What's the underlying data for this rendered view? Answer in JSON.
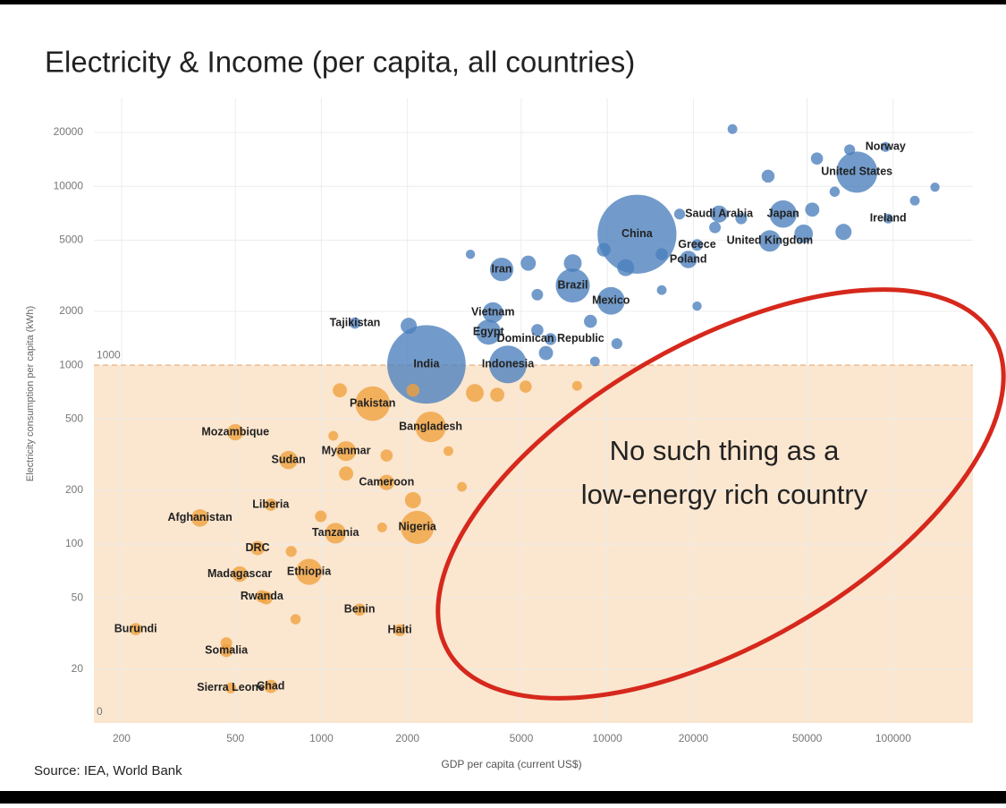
{
  "chart_data": {
    "type": "bubble",
    "title": "Electricity & Income (per capita, all countries)",
    "x_label": "GDP per capita (current US$)",
    "y_label": "Electricity consumption per capita (kWh)",
    "source": "Source: IEA, World Bank",
    "annotation": [
      "No such thing as a",
      "low-energy rich country"
    ],
    "threshold": {
      "value": 1000,
      "label": "1000"
    },
    "origin_label": "0",
    "log_x": true,
    "log_y": true,
    "grid": true,
    "xlim": [
      160,
      190000
    ],
    "ylim": [
      10,
      31000
    ],
    "xticks": [
      200,
      500,
      1000,
      2000,
      5000,
      10000,
      20000,
      50000,
      100000
    ],
    "yticks": [
      20,
      50,
      100,
      200,
      500,
      1000,
      2000,
      5000,
      10000,
      20000
    ],
    "series": [
      {
        "color": "#4a7fbc",
        "labels": [
          "Norway",
          "United States",
          "Saudi Arabia",
          "Japan",
          "Ireland",
          "China",
          "Greece",
          "Poland",
          "United Kingdom",
          "Iran",
          "Brazil",
          "Mexico",
          "Vietnam",
          "Egypt",
          "Dominican Republic",
          "Tajikistan",
          "India",
          "Indonesia",
          null,
          null,
          null,
          null,
          null,
          null,
          null,
          null,
          null,
          null,
          null,
          null,
          null,
          null,
          null,
          null,
          null,
          null,
          null,
          null,
          null,
          null,
          null,
          null,
          null,
          null,
          null,
          null
        ],
        "x": [
          94000,
          74600,
          24600,
          41200,
          96000,
          12700,
          20600,
          19200,
          37000,
          4270,
          7570,
          10300,
          3980,
          3840,
          6330,
          1310,
          2330,
          4490,
          27400,
          70400,
          54100,
          36500,
          62400,
          140000,
          119000,
          52100,
          29400,
          17900,
          67000,
          48600,
          23800,
          15500,
          11600,
          9720,
          5290,
          3320,
          5690,
          15500,
          20600,
          8730,
          5690,
          2020,
          10800,
          9050,
          6100,
          7570
        ],
        "values": [
          16600,
          12000,
          7000,
          7000,
          6600,
          5400,
          4700,
          3900,
          4950,
          3430,
          2790,
          2290,
          1970,
          1530,
          1400,
          1720,
          1010,
          1010,
          20900,
          16000,
          14300,
          11400,
          9330,
          9890,
          8320,
          7410,
          6610,
          7000,
          5560,
          5430,
          5890,
          4170,
          3510,
          4420,
          3720,
          4170,
          2480,
          2630,
          2140,
          1760,
          1570,
          1660,
          1320,
          1050,
          1170,
          3720
        ],
        "sizes": [
          5,
          330,
          35,
          125,
          5,
          1400,
          10,
          38,
          67,
          85,
          212,
          128,
          60,
          100,
          11,
          9,
          1380,
          270,
          5,
          8,
          12,
          15,
          6,
          4,
          5,
          20,
          10,
          8,
          30,
          45,
          10,
          12,
          35,
          18,
          25,
          4,
          10,
          5,
          4,
          15,
          12,
          30,
          8,
          5,
          20,
          40
        ]
      },
      {
        "color": "#f0a03c",
        "labels": [
          "Pakistan",
          "Bangladesh",
          "Mozambique",
          "Myanmar",
          "Sudan",
          "Cameroon",
          "Liberia",
          "Afghanistan",
          "Nigeria",
          "Tanzania",
          "DRC",
          "Ethiopia",
          "Madagascar",
          "Rwanda",
          "Benin",
          "Haiti",
          "Burundi",
          "Somalia",
          "Sierra Leone",
          "Chad",
          null,
          null,
          null,
          null,
          null,
          null,
          null,
          null,
          null,
          null,
          null,
          null,
          null,
          null,
          null,
          null,
          null,
          null
        ],
        "x": [
          1510,
          2410,
          500,
          1220,
          767,
          1690,
          665,
          376,
          2165,
          1120,
          598,
          905,
          518,
          619,
          1360,
          1880,
          224,
          465,
          482,
          665,
          1160,
          2090,
          3440,
          4120,
          5180,
          7840,
          2780,
          3100,
          1220,
          2090,
          995,
          1630,
          784,
          641,
          812,
          465,
          1100,
          1690
        ],
        "values": [
          610,
          452,
          422,
          331,
          295,
          221,
          166,
          140,
          124,
          115,
          95,
          70,
          68,
          51,
          43,
          33,
          33.5,
          25.4,
          15.7,
          16,
          724,
          724,
          700,
          684,
          759,
          767,
          331,
          209,
          248,
          176,
          143,
          124,
          91,
          50,
          38,
          28,
          403,
          313
        ],
        "sizes": [
          220,
          165,
          31,
          54,
          43,
          26,
          12,
          38,
          200,
          60,
          20,
          110,
          27,
          13,
          12,
          11,
          12,
          15,
          8,
          16,
          20,
          15,
          40,
          20,
          12,
          5,
          5,
          5,
          20,
          30,
          10,
          5,
          8,
          15,
          6,
          10,
          5,
          12
        ]
      }
    ]
  }
}
